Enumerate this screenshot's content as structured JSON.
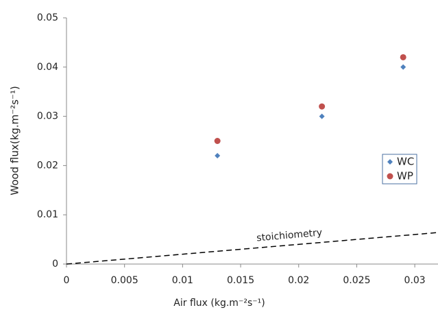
{
  "chart_data": {
    "type": "scatter",
    "x_label": "Air flux (kg.m⁻²s⁻¹)",
    "y_label": "Wood flux(kg.m⁻²s⁻¹)",
    "xlim": [
      0,
      0.032
    ],
    "ylim": [
      0,
      0.05
    ],
    "xticks": [
      0,
      0.005,
      0.01,
      0.015,
      0.02,
      0.025,
      0.03
    ],
    "yticks": [
      0,
      0.01,
      0.02,
      0.03,
      0.04,
      0.05
    ],
    "grid": false,
    "legend": "right",
    "series": [
      {
        "name": "WC",
        "color": "#4f81bd",
        "marker": "diamond",
        "x": [
          0.013,
          0.022,
          0.029
        ],
        "values": [
          0.022,
          0.03,
          0.04
        ]
      },
      {
        "name": "WP",
        "color": "#c0504d",
        "marker": "circle",
        "x": [
          0.013,
          0.022,
          0.029
        ],
        "values": [
          0.025,
          0.032,
          0.042
        ]
      }
    ],
    "annotations": [
      {
        "text": "stoichiometry",
        "color": "#000000",
        "dash": true,
        "x": [
          0,
          0.032
        ],
        "values": [
          0,
          0.0064
        ]
      }
    ]
  }
}
